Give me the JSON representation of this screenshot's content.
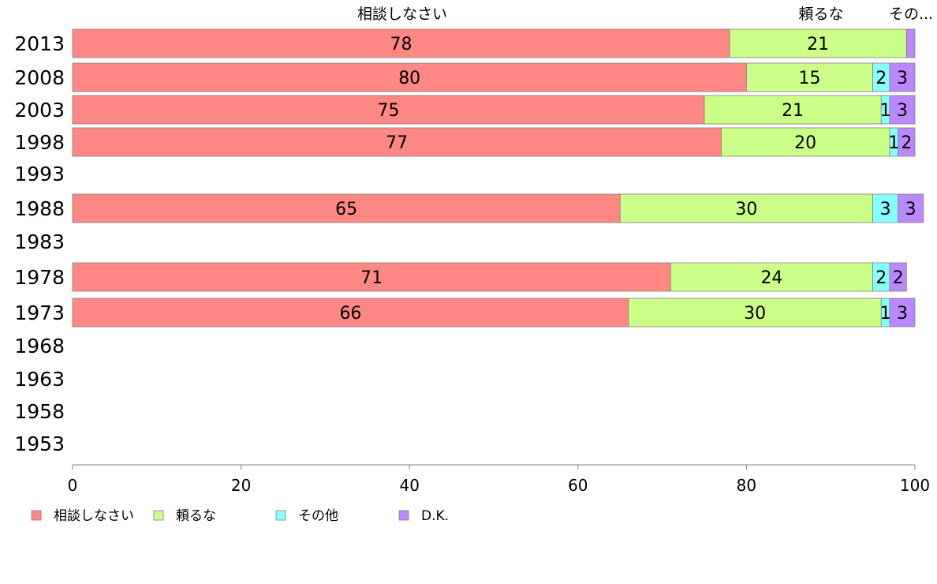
{
  "chart_data": {
    "type": "bar",
    "orientation": "horizontal",
    "stacked": true,
    "categories": [
      "2013",
      "2008",
      "2003",
      "1998",
      "1993",
      "1988",
      "1983",
      "1978",
      "1973",
      "1968",
      "1963",
      "1958",
      "1953"
    ],
    "series": [
      {
        "name": "相談しなさい",
        "color": "#ff8884",
        "values": [
          78,
          80,
          75,
          77,
          null,
          65,
          null,
          71,
          66,
          null,
          null,
          null,
          null
        ]
      },
      {
        "name": "頼るな",
        "color": "#ccff88",
        "values": [
          21,
          15,
          21,
          20,
          null,
          30,
          null,
          24,
          30,
          null,
          null,
          null,
          null
        ]
      },
      {
        "name": "その他",
        "color": "#88ffff",
        "values": [
          0,
          2,
          1,
          1,
          null,
          3,
          null,
          2,
          1,
          null,
          null,
          null,
          null
        ]
      },
      {
        "name": "D.K.",
        "color": "#bb88ff",
        "values": [
          1,
          3,
          3,
          2,
          null,
          3,
          null,
          2,
          3,
          null,
          null,
          null,
          null
        ]
      }
    ],
    "data_labels": [
      [
        "78",
        "21",
        "",
        ""
      ],
      [
        "80",
        "15",
        "2",
        "3"
      ],
      [
        "75",
        "21",
        "1",
        "3"
      ],
      [
        "77",
        "20",
        "1",
        "2"
      ],
      [
        "",
        "",
        "",
        ""
      ],
      [
        "65",
        "30",
        "3",
        "3"
      ],
      [
        "",
        "",
        "",
        ""
      ],
      [
        "71",
        "24",
        "2",
        "2"
      ],
      [
        "66",
        "30",
        "1",
        "3"
      ],
      [
        "",
        "",
        "",
        ""
      ],
      [
        "",
        "",
        "",
        ""
      ],
      [
        "",
        "",
        "",
        ""
      ],
      [
        "",
        "",
        "",
        ""
      ]
    ],
    "top_labels": [
      "相談しなさい",
      "頼るな",
      "その..."
    ],
    "xlim": [
      0,
      100
    ],
    "xticks": [
      "0",
      "20",
      "40",
      "60",
      "80",
      "100"
    ],
    "grid": false,
    "legend": {
      "position": "bottom-left",
      "entries": [
        "相談しなさい",
        "頼るな",
        "その他",
        "D.K."
      ]
    }
  }
}
